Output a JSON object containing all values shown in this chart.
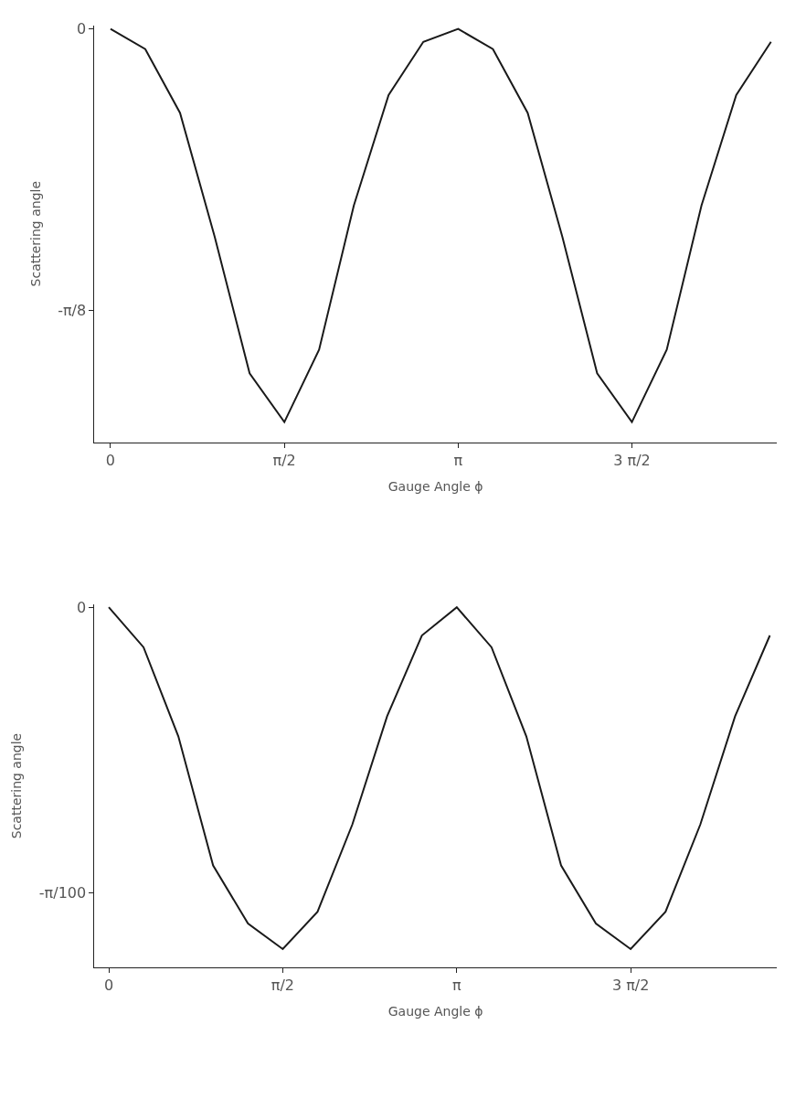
{
  "chart_data": [
    {
      "type": "line",
      "xlabel": "Gauge Angle ϕ",
      "ylabel": "Scattering angle",
      "x": [
        0,
        0.314,
        0.628,
        0.942,
        1.257,
        1.571,
        1.885,
        2.199,
        2.513,
        2.827,
        3.142,
        3.456,
        3.77,
        4.084,
        4.398,
        4.712,
        5.027,
        5.341,
        5.655,
        5.969
      ],
      "series": [
        {
          "color": "#1a1a1a",
          "values": [
            0,
            -0.028,
            -0.117,
            -0.29,
            -0.48,
            -0.548,
            -0.447,
            -0.246,
            -0.092,
            -0.018,
            0,
            -0.028,
            -0.117,
            -0.29,
            -0.48,
            -0.548,
            -0.447,
            -0.246,
            -0.092,
            -0.018
          ]
        }
      ],
      "xlim": [
        -0.145,
        6.02
      ],
      "ylim": [
        -0.576,
        0.005
      ],
      "xticks": [
        0,
        {
          "value": 1.5708,
          "label": "π/2"
        },
        {
          "value": 3.1416,
          "label": "π"
        },
        {
          "value": 4.7124,
          "label": "3 π/2"
        }
      ],
      "yticks": [
        0,
        {
          "value": -0.3927,
          "label": "-π/8"
        }
      ],
      "marker": "none",
      "line_style": "solid"
    },
    {
      "type": "line",
      "xlabel": "Gauge Angle ϕ",
      "ylabel": "Scattering angle",
      "x": [
        0,
        0.314,
        0.628,
        0.942,
        1.257,
        1.571,
        1.885,
        2.199,
        2.513,
        2.827,
        3.142,
        3.456,
        3.77,
        4.084,
        4.398,
        4.712,
        5.027,
        5.341,
        5.655,
        5.969
      ],
      "series": [
        {
          "color": "#1a1a1a",
          "values": [
            0,
            -0.0044,
            -0.0142,
            -0.0284,
            -0.0348,
            -0.0376,
            -0.0335,
            -0.0239,
            -0.012,
            -0.0031,
            0,
            -0.0044,
            -0.0142,
            -0.0284,
            -0.0348,
            -0.0376,
            -0.0335,
            -0.0239,
            -0.012,
            -0.0031
          ]
        }
      ],
      "xlim": [
        -0.129,
        6.03
      ],
      "ylim": [
        -0.0396,
        0.0003
      ],
      "xticks": [
        0,
        {
          "value": 1.5708,
          "label": "π/2"
        },
        {
          "value": 3.1416,
          "label": "π"
        },
        {
          "value": 4.7124,
          "label": "3 π/2"
        }
      ],
      "yticks": [
        0,
        {
          "value": -0.031416,
          "label": "-π/100"
        }
      ],
      "marker": "none",
      "line_style": "solid"
    }
  ]
}
